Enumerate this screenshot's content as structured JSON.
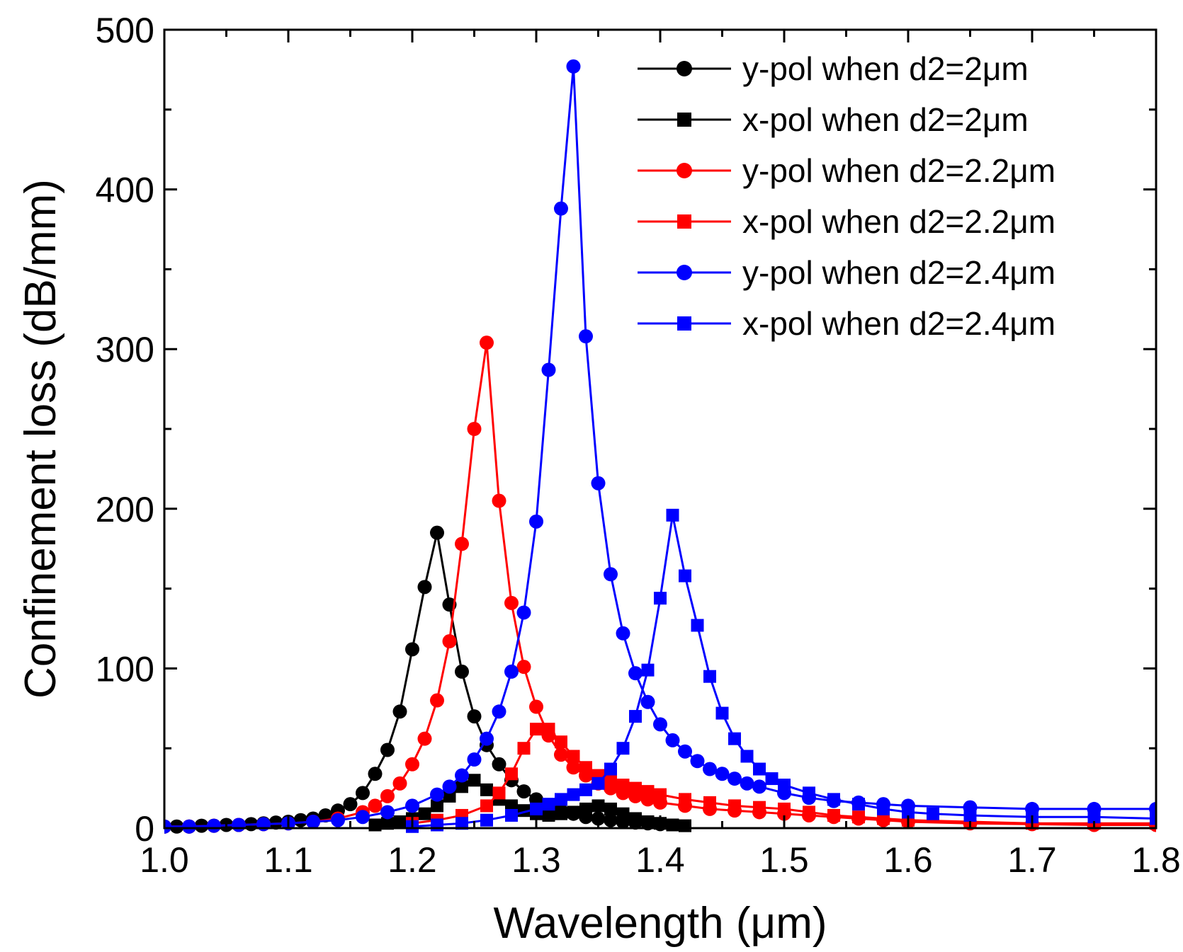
{
  "chart_data": {
    "type": "line",
    "title": "",
    "xlabel": "Wavelength (μm)",
    "ylabel": "Confinement loss (dB/mm)",
    "xlim": [
      1.0,
      1.8
    ],
    "ylim": [
      0,
      500
    ],
    "xticks": [
      "1.0",
      "1.1",
      "1.2",
      "1.3",
      "1.4",
      "1.5",
      "1.6",
      "1.7",
      "1.8"
    ],
    "yticks": [
      "0",
      "100",
      "200",
      "300",
      "400",
      "500"
    ],
    "grid": false,
    "legend_position": "top-right",
    "series": [
      {
        "name": "y-pol when d2=2μm",
        "color": "#000000",
        "marker": "circle",
        "x": [
          1.0,
          1.01,
          1.02,
          1.03,
          1.04,
          1.05,
          1.06,
          1.07,
          1.08,
          1.09,
          1.1,
          1.11,
          1.12,
          1.13,
          1.14,
          1.15,
          1.16,
          1.17,
          1.18,
          1.19,
          1.2,
          1.21,
          1.22,
          1.23,
          1.24,
          1.25,
          1.26,
          1.27,
          1.28,
          1.29,
          1.3,
          1.31,
          1.32,
          1.33,
          1.34,
          1.35,
          1.36,
          1.37,
          1.38,
          1.39,
          1.4
        ],
        "y": [
          1,
          1,
          1,
          1.5,
          1.5,
          2,
          2,
          2.5,
          3,
          3.5,
          4,
          5,
          6,
          8,
          11,
          15,
          22,
          34,
          49,
          73,
          112,
          151,
          185,
          140,
          98,
          70,
          52,
          40,
          30,
          23,
          18,
          14,
          11,
          9,
          7,
          6,
          5,
          4,
          3.5,
          3,
          2.5
        ]
      },
      {
        "name": "x-pol when d2=2μm",
        "color": "#000000",
        "marker": "square",
        "x": [
          1.17,
          1.18,
          1.19,
          1.2,
          1.21,
          1.22,
          1.23,
          1.24,
          1.25,
          1.26,
          1.27,
          1.28,
          1.29,
          1.3,
          1.31,
          1.32,
          1.33,
          1.34,
          1.35,
          1.36,
          1.37,
          1.38,
          1.39,
          1.4,
          1.41,
          1.42
        ],
        "y": [
          2,
          3,
          4,
          6,
          9,
          14,
          20,
          26,
          30,
          24,
          18,
          14,
          11,
          9,
          8,
          9,
          10,
          12,
          14,
          12,
          9,
          6,
          4,
          3,
          2,
          1.5
        ]
      },
      {
        "name": "y-pol when d2=2.2μm",
        "color": "#ff0000",
        "marker": "circle",
        "x": [
          1.0,
          1.02,
          1.04,
          1.06,
          1.08,
          1.1,
          1.12,
          1.14,
          1.16,
          1.17,
          1.18,
          1.19,
          1.2,
          1.21,
          1.22,
          1.23,
          1.24,
          1.25,
          1.26,
          1.27,
          1.28,
          1.29,
          1.3,
          1.31,
          1.32,
          1.33,
          1.34,
          1.35,
          1.36,
          1.37,
          1.38,
          1.39,
          1.4,
          1.42,
          1.44,
          1.46,
          1.48,
          1.5,
          1.52,
          1.54,
          1.56,
          1.58,
          1.6,
          1.65,
          1.7,
          1.75,
          1.8
        ],
        "y": [
          1,
          1,
          1.5,
          2,
          2.5,
          3,
          4,
          6,
          10,
          14,
          20,
          28,
          40,
          56,
          80,
          117,
          178,
          250,
          304,
          205,
          141,
          101,
          76,
          58,
          46,
          38,
          33,
          28,
          25,
          22,
          20,
          18,
          16,
          14,
          12,
          11,
          10,
          9,
          8,
          7,
          6,
          5,
          4,
          3,
          2.5,
          2,
          2
        ]
      },
      {
        "name": "x-pol when d2=2.2μm",
        "color": "#ff0000",
        "marker": "square",
        "x": [
          1.2,
          1.22,
          1.24,
          1.26,
          1.27,
          1.28,
          1.29,
          1.3,
          1.31,
          1.32,
          1.33,
          1.34,
          1.35,
          1.36,
          1.37,
          1.38,
          1.39,
          1.4,
          1.42,
          1.44,
          1.46,
          1.48,
          1.5,
          1.52,
          1.54,
          1.56,
          1.58,
          1.6,
          1.65,
          1.7,
          1.75,
          1.8
        ],
        "y": [
          3,
          5,
          8,
          14,
          22,
          34,
          50,
          62,
          62,
          54,
          45,
          38,
          33,
          30,
          27,
          25,
          23,
          21,
          18,
          16,
          14,
          13,
          12,
          10,
          8,
          7,
          6,
          5,
          4,
          3,
          3,
          3
        ]
      },
      {
        "name": "y-pol when d2=2.4μm",
        "color": "#0000ff",
        "marker": "circle",
        "x": [
          1.0,
          1.02,
          1.04,
          1.06,
          1.08,
          1.1,
          1.12,
          1.14,
          1.16,
          1.18,
          1.2,
          1.22,
          1.23,
          1.24,
          1.25,
          1.26,
          1.27,
          1.28,
          1.29,
          1.3,
          1.31,
          1.32,
          1.33,
          1.34,
          1.35,
          1.36,
          1.37,
          1.38,
          1.39,
          1.4,
          1.41,
          1.42,
          1.43,
          1.44,
          1.45,
          1.46,
          1.47,
          1.48,
          1.5,
          1.52,
          1.54,
          1.56,
          1.58,
          1.6,
          1.65,
          1.7,
          1.75,
          1.8
        ],
        "y": [
          1,
          1,
          1.5,
          2,
          2.5,
          3,
          4,
          5,
          7,
          10,
          14,
          21,
          26,
          33,
          43,
          56,
          73,
          98,
          135,
          192,
          287,
          388,
          477,
          308,
          216,
          159,
          122,
          97,
          79,
          65,
          55,
          48,
          42,
          37,
          34,
          31,
          28,
          26,
          22,
          19,
          17,
          16,
          15,
          14,
          13,
          12,
          12,
          12
        ]
      },
      {
        "name": "x-pol when d2=2.4μm",
        "color": "#0000ff",
        "marker": "square",
        "x": [
          1.2,
          1.22,
          1.24,
          1.26,
          1.28,
          1.3,
          1.31,
          1.32,
          1.33,
          1.34,
          1.35,
          1.36,
          1.37,
          1.38,
          1.39,
          1.4,
          1.41,
          1.42,
          1.43,
          1.44,
          1.45,
          1.46,
          1.47,
          1.48,
          1.49,
          1.5,
          1.52,
          1.54,
          1.56,
          1.58,
          1.6,
          1.62,
          1.65,
          1.7,
          1.75,
          1.8
        ],
        "y": [
          1,
          2,
          3,
          5,
          8,
          12,
          15,
          18,
          21,
          24,
          28,
          37,
          50,
          70,
          99,
          144,
          196,
          158,
          127,
          95,
          72,
          56,
          45,
          37,
          31,
          27,
          22,
          18,
          15,
          12,
          10,
          9,
          8,
          7,
          7,
          6
        ]
      }
    ]
  }
}
